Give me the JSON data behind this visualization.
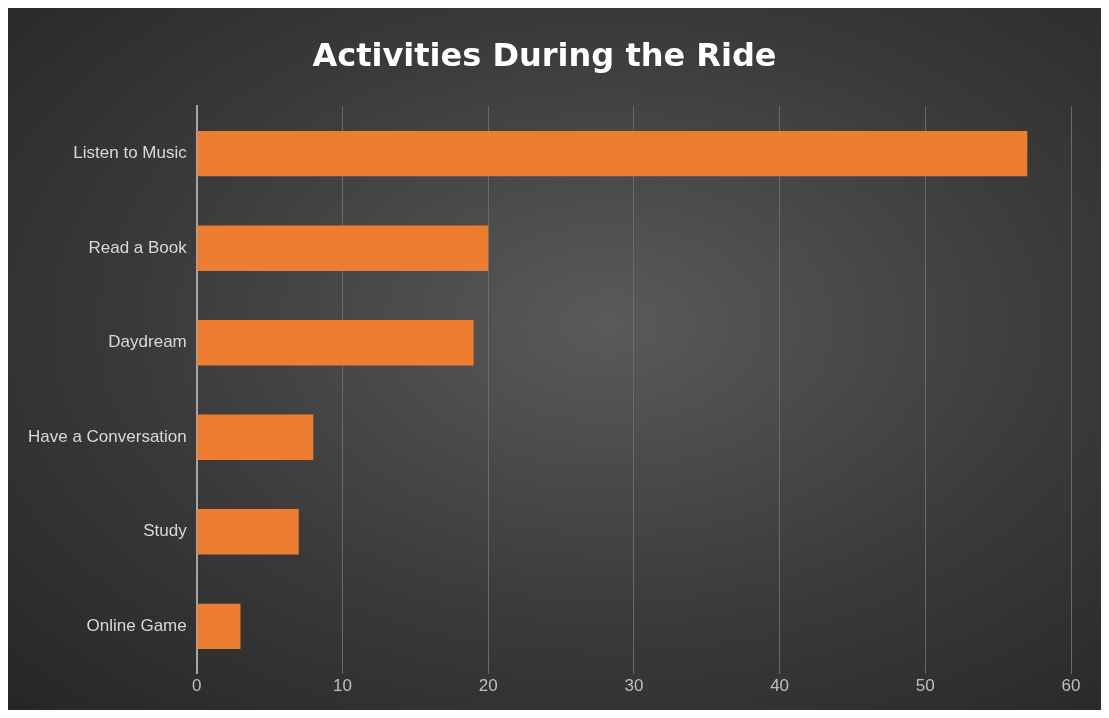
{
  "chart_data": {
    "type": "bar",
    "orientation": "horizontal",
    "title": "Activities During the Ride",
    "categories": [
      "Listen to Music",
      "Read a Book",
      "Daydream",
      "Have a Conversation",
      "Study",
      "Online Game"
    ],
    "values": [
      57,
      20,
      19,
      8,
      7,
      3
    ],
    "color": "#ed7d31",
    "xlim": [
      0,
      60
    ],
    "xticks": [
      0,
      10,
      20,
      30,
      40,
      50,
      60
    ],
    "grid": "x",
    "legend": false
  }
}
